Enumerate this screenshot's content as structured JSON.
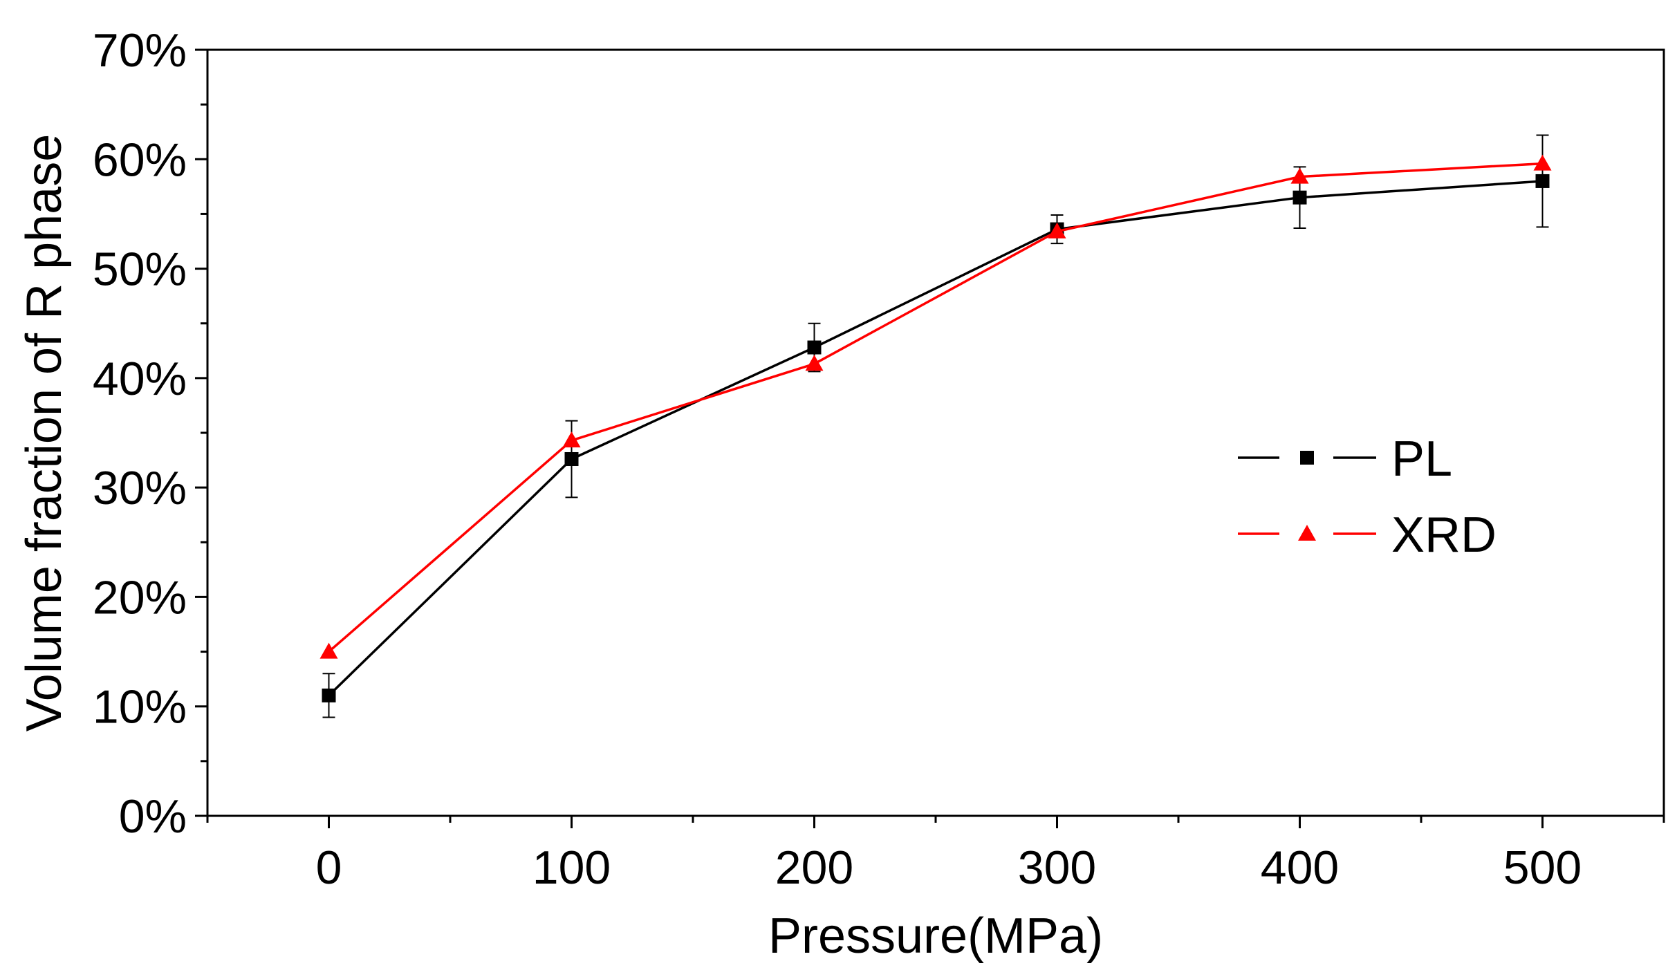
{
  "chart_data": {
    "type": "line",
    "title": "",
    "xlabel": "Pressure(MPa)",
    "ylabel": "Volume fraction of R phase",
    "xlim": [
      -50,
      550
    ],
    "ylim": [
      0,
      70
    ],
    "x_ticks": [
      0,
      100,
      200,
      300,
      400,
      500
    ],
    "x_tick_labels": [
      "0",
      "100",
      "200",
      "300",
      "400",
      "500"
    ],
    "y_ticks": [
      0,
      10,
      20,
      30,
      40,
      50,
      60,
      70
    ],
    "y_tick_labels": [
      "0%",
      "10%",
      "20%",
      "30%",
      "40%",
      "50%",
      "60%",
      "70%"
    ],
    "x": [
      0,
      100,
      200,
      300,
      400,
      500
    ],
    "series": [
      {
        "name": "PL",
        "color": "#000000",
        "marker": "square",
        "values": [
          11.0,
          32.6,
          42.8,
          53.6,
          56.5,
          58.0
        ],
        "error": [
          2.0,
          3.5,
          2.2,
          1.3,
          2.8,
          4.2
        ]
      },
      {
        "name": "XRD",
        "color": "#ff0000",
        "marker": "triangle",
        "values": [
          15.0,
          34.3,
          41.3,
          53.4,
          58.4,
          59.6
        ],
        "error": [
          0,
          0,
          0,
          0,
          0,
          0
        ]
      }
    ],
    "legend_position": "center-right",
    "grid": false
  }
}
